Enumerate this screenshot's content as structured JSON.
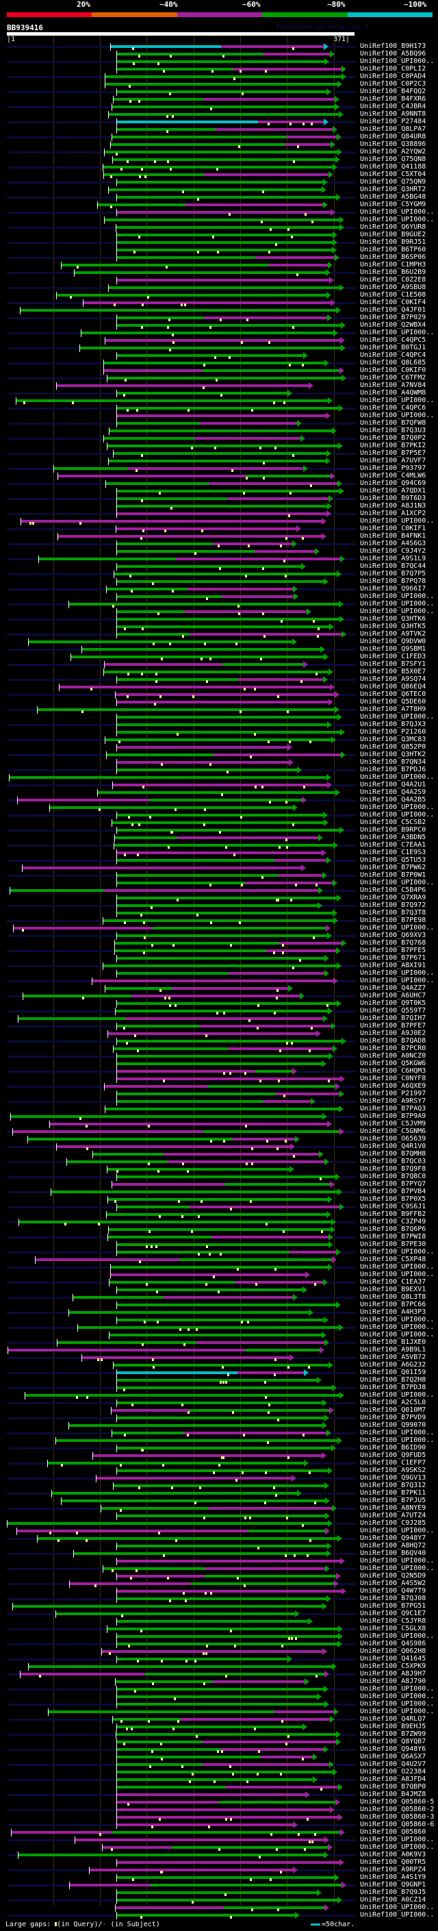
{
  "header": {
    "scale_labels": [
      "20%",
      "~40%",
      "~60%",
      "~80%",
      "~100%"
    ],
    "scale_colors": [
      "#ee0020",
      "#e06000",
      "#a020a0",
      "#00a000",
      "#00c0c8"
    ],
    "query_name": "BB939416",
    "watermark": "AlignView.pm Beta rel.7",
    "query_start": "|1",
    "query_end": "371|"
  },
  "colors": {
    "identity_100": "#00c0c8",
    "identity_80": "#00a000",
    "identity_60": "#a020a0",
    "gap_query": "#ffff90",
    "row_band": "#0a0a3a",
    "gridline": "#3a3410"
  },
  "hits": [
    {
      "label": "UniRef100_B9H173",
      "c": "cyan"
    },
    {
      "label": "UniRef100_A5BQ96",
      "c": "green"
    },
    {
      "label": "UniRef100_UPI000..",
      "c": "green"
    },
    {
      "label": "UniRef100_C0PLI2",
      "c": "green"
    },
    {
      "label": "UniRef100_C0PAD4",
      "c": "green"
    },
    {
      "label": "UniRef100_C0P2C3",
      "c": "green"
    },
    {
      "label": "UniRef100_B4FQQ2",
      "c": "green"
    },
    {
      "label": "UniRef100_B4FXR6",
      "c": "green"
    },
    {
      "label": "UniRef100_C4JBR4",
      "c": "green"
    },
    {
      "label": "UniRef100_A9NNT8",
      "c": "green"
    },
    {
      "label": "UniRef100_P27484",
      "c": "cyan"
    },
    {
      "label": "UniRef100_Q8LPA7",
      "c": "green"
    },
    {
      "label": "UniRef100_Q84UR8",
      "c": "green"
    },
    {
      "label": "UniRef100_Q38896",
      "c": "green"
    },
    {
      "label": "UniRef100_A2YQW2",
      "c": "green"
    },
    {
      "label": "UniRef100_Q75QN8",
      "c": "green"
    },
    {
      "label": "UniRef100_Q41188",
      "c": "green"
    },
    {
      "label": "UniRef100_C5XT04",
      "c": "green"
    },
    {
      "label": "UniRef100_Q75QN9",
      "c": "green"
    },
    {
      "label": "UniRef100_Q3HRT2",
      "c": "green"
    },
    {
      "label": "UniRef100_A5BG48",
      "c": "green"
    },
    {
      "label": "UniRef100_C5YGM9",
      "c": "green"
    },
    {
      "label": "UniRef100_UPI000..",
      "c": "magenta"
    },
    {
      "label": "UniRef100_UPI000..",
      "c": "green"
    },
    {
      "label": "UniRef100_Q6YUR8",
      "c": "green"
    },
    {
      "label": "UniRef100_B9GUE2",
      "c": "green"
    },
    {
      "label": "UniRef100_B9RJ51",
      "c": "green"
    },
    {
      "label": "UniRef100_B6TP60",
      "c": "green"
    },
    {
      "label": "UniRef100_B6SP06",
      "c": "green"
    },
    {
      "label": "UniRef100_C1MPH3",
      "c": "green"
    },
    {
      "label": "UniRef100_B6U2B9",
      "c": "green"
    },
    {
      "label": "UniRef100_C0Z2E8",
      "c": "magenta"
    },
    {
      "label": "UniRef100_A9SBU8",
      "c": "green"
    },
    {
      "label": "UniRef100_C1E508",
      "c": "green"
    },
    {
      "label": "UniRef100_C0KIF4",
      "c": "magenta"
    },
    {
      "label": "UniRef100_Q4JF01",
      "c": "green"
    },
    {
      "label": "UniRef100_B7P029",
      "c": "green"
    },
    {
      "label": "UniRef100_Q2WBX4",
      "c": "green"
    },
    {
      "label": "UniRef100_UPI000..",
      "c": "green"
    },
    {
      "label": "UniRef100_C4QPC5",
      "c": "magenta"
    },
    {
      "label": "UniRef100_B0TGJ1",
      "c": "green"
    },
    {
      "label": "UniRef100_C4QPC4",
      "c": "green"
    },
    {
      "label": "UniRef100_Q8L685",
      "c": "green"
    },
    {
      "label": "UniRef100_C0KIF0",
      "c": "magenta"
    },
    {
      "label": "UniRef100_C6TFM2",
      "c": "green"
    },
    {
      "label": "UniRef100_A7NV84",
      "c": "magenta"
    },
    {
      "label": "UniRef100_A4QWM8",
      "c": "green"
    },
    {
      "label": "UniRef100_UPI000..",
      "c": "green"
    },
    {
      "label": "UniRef100_C4QPC6",
      "c": "green"
    },
    {
      "label": "UniRef100_UPI000..",
      "c": "magenta"
    },
    {
      "label": "UniRef100_B7QFW8",
      "c": "green"
    },
    {
      "label": "UniRef100_B7Q3U3",
      "c": "green"
    },
    {
      "label": "UniRef100_B7Q0P2",
      "c": "green"
    },
    {
      "label": "UniRef100_B7PKI2",
      "c": "green"
    },
    {
      "label": "UniRef100_B7P5E7",
      "c": "green"
    },
    {
      "label": "UniRef100_A7UVF7",
      "c": "green"
    },
    {
      "label": "UniRef100_P93797",
      "c": "green"
    },
    {
      "label": "UniRef100_C4MLW6",
      "c": "magenta"
    },
    {
      "label": "UniRef100_Q94C69",
      "c": "green"
    },
    {
      "label": "UniRef100_A7QDX1",
      "c": "green"
    },
    {
      "label": "UniRef100_B9T6D3",
      "c": "green"
    },
    {
      "label": "UniRef100_A8J1N3",
      "c": "green"
    },
    {
      "label": "UniRef100_A1XCP2",
      "c": "magenta"
    },
    {
      "label": "UniRef100_UPI000..",
      "c": "magenta"
    },
    {
      "label": "UniRef100_C0KIF1",
      "c": "magenta"
    },
    {
      "label": "UniRef100_B4FNK1",
      "c": "magenta"
    },
    {
      "label": "UniRef100_A4S6G3",
      "c": "green"
    },
    {
      "label": "UniRef100_C9J4Y2",
      "c": "green"
    },
    {
      "label": "UniRef100_A9S1L9",
      "c": "green"
    },
    {
      "label": "UniRef100_B7QC44",
      "c": "green"
    },
    {
      "label": "UniRef100_B7Q7P5",
      "c": "green"
    },
    {
      "label": "UniRef100_B7PQ78",
      "c": "green"
    },
    {
      "label": "UniRef100_Q966I7",
      "c": "green"
    },
    {
      "label": "UniRef100_UPI000..",
      "c": "green"
    },
    {
      "label": "UniRef100_UPI000..",
      "c": "green"
    },
    {
      "label": "UniRef100_UPI000..",
      "c": "green"
    },
    {
      "label": "UniRef100_Q3HTK6",
      "c": "green"
    },
    {
      "label": "UniRef100_Q3HTK5",
      "c": "green"
    },
    {
      "label": "UniRef100_A9TVK2",
      "c": "green"
    },
    {
      "label": "UniRef100_Q9DVW0",
      "c": "green"
    },
    {
      "label": "UniRef100_Q9SBM1",
      "c": "green"
    },
    {
      "label": "UniRef100_C1FED3",
      "c": "green"
    },
    {
      "label": "UniRef100_B7SFY1",
      "c": "magenta"
    },
    {
      "label": "UniRef100_B5X0E7",
      "c": "green"
    },
    {
      "label": "UniRef100_A9SQ74",
      "c": "green"
    },
    {
      "label": "UniRef100_Q86EQ4",
      "c": "magenta"
    },
    {
      "label": "UniRef100_Q6TEC0",
      "c": "magenta"
    },
    {
      "label": "UniRef100_Q5DE60",
      "c": "magenta"
    },
    {
      "label": "UniRef100_A7T8H9",
      "c": "green"
    },
    {
      "label": "UniRef100_UPI000..",
      "c": "green"
    },
    {
      "label": "UniRef100_B7QJX3",
      "c": "green"
    },
    {
      "label": "UniRef100_P21260",
      "c": "green"
    },
    {
      "label": "UniRef100_Q3MC83",
      "c": "green"
    },
    {
      "label": "UniRef100_Q852P0",
      "c": "magenta"
    },
    {
      "label": "UniRef100_Q3HTK2",
      "c": "green"
    },
    {
      "label": "UniRef100_B7QN34",
      "c": "magenta"
    },
    {
      "label": "UniRef100_B7PDJ6",
      "c": "green"
    },
    {
      "label": "UniRef100_UPI000..",
      "c": "green"
    },
    {
      "label": "UniRef100_Q4A2U1",
      "c": "magenta"
    },
    {
      "label": "UniRef100_Q4A2S9",
      "c": "green"
    },
    {
      "label": "UniRef100_Q4A2B5",
      "c": "magenta"
    },
    {
      "label": "UniRef100_UPI000..",
      "c": "green"
    },
    {
      "label": "UniRef100_UPI000..",
      "c": "green"
    },
    {
      "label": "UniRef100_C5CSB2",
      "c": "green"
    },
    {
      "label": "UniRef100_B9RPC0",
      "c": "green"
    },
    {
      "label": "UniRef100_A3BDN5",
      "c": "green"
    },
    {
      "label": "UniRef100_C7EAA1",
      "c": "green"
    },
    {
      "label": "UniRef100_C1E9S3",
      "c": "magenta"
    },
    {
      "label": "UniRef100_Q5TU53",
      "c": "green"
    },
    {
      "label": "UniRef100_B7PW62",
      "c": "magenta"
    },
    {
      "label": "UniRef100_B7P0W1",
      "c": "green"
    },
    {
      "label": "UniRef100_UPI000..",
      "c": "green"
    },
    {
      "label": "UniRef100_C5B4P6",
      "c": "green"
    },
    {
      "label": "UniRef100_Q7XRA9",
      "c": "green"
    },
    {
      "label": "UniRef100_B7Q972",
      "c": "green"
    },
    {
      "label": "UniRef100_B7Q3T8",
      "c": "green"
    },
    {
      "label": "UniRef100_B7PE98",
      "c": "green"
    },
    {
      "label": "UniRef100_UPI000..",
      "c": "magenta"
    },
    {
      "label": "UniRef100_Q69XV3",
      "c": "green"
    },
    {
      "label": "UniRef100_B7Q768",
      "c": "green"
    },
    {
      "label": "UniRef100_B7PFE5",
      "c": "green"
    },
    {
      "label": "UniRef100_B7P671",
      "c": "green"
    },
    {
      "label": "UniRef100_A8XI91",
      "c": "green"
    },
    {
      "label": "UniRef100_UPI000..",
      "c": "green"
    },
    {
      "label": "UniRef100_UPI000..",
      "c": "magenta"
    },
    {
      "label": "UniRef100_Q4AZZ7",
      "c": "green"
    },
    {
      "label": "UniRef100_A6UHC7",
      "c": "green"
    },
    {
      "label": "UniRef100_Q9T0K5",
      "c": "green"
    },
    {
      "label": "UniRef100_Q559T7",
      "c": "green"
    },
    {
      "label": "UniRef100_B7QIH7",
      "c": "green"
    },
    {
      "label": "UniRef100_B7PFE7",
      "c": "green"
    },
    {
      "label": "UniRef100_A9J0E2",
      "c": "magenta"
    },
    {
      "label": "UniRef100_B7QAD8",
      "c": "green"
    },
    {
      "label": "UniRef100_B7PCR0",
      "c": "green"
    },
    {
      "label": "UniRef100_A0NCZ0",
      "c": "green"
    },
    {
      "label": "UniRef100_Q5KGW6",
      "c": "green"
    },
    {
      "label": "UniRef100_C6HQM3",
      "c": "magenta"
    },
    {
      "label": "UniRef100_C0NYF8",
      "c": "magenta"
    },
    {
      "label": "UniRef100_A6QXE9",
      "c": "magenta"
    },
    {
      "label": "UniRef100_P21997",
      "c": "green"
    },
    {
      "label": "UniRef100_A9RSY7",
      "c": "green"
    },
    {
      "label": "UniRef100_B7PAQ3",
      "c": "green"
    },
    {
      "label": "UniRef100_B7P9A9",
      "c": "green"
    },
    {
      "label": "UniRef100_C5JVM9",
      "c": "magenta"
    },
    {
      "label": "UniRef100_C5GNM6",
      "c": "magenta"
    },
    {
      "label": "UniRef100_O65639",
      "c": "green"
    },
    {
      "label": "UniRef100_Q4R1V0",
      "c": "magenta"
    },
    {
      "label": "UniRef100_B7QMH8",
      "c": "green"
    },
    {
      "label": "UniRef100_B7QC03",
      "c": "green"
    },
    {
      "label": "UniRef100_B7Q9F8",
      "c": "green"
    },
    {
      "label": "UniRef100_B7Q8C0",
      "c": "green"
    },
    {
      "label": "UniRef100_B7PYQ7",
      "c": "magenta"
    },
    {
      "label": "UniRef100_B7PVB4",
      "c": "green"
    },
    {
      "label": "UniRef100_B7P0X5",
      "c": "green"
    },
    {
      "label": "UniRef100_C9S6J1",
      "c": "green"
    },
    {
      "label": "UniRef100_B9FFB2",
      "c": "green"
    },
    {
      "label": "UniRef100_C3ZP49",
      "c": "green"
    },
    {
      "label": "UniRef100_B7Q6P6",
      "c": "green"
    },
    {
      "label": "UniRef100_B7PWI8",
      "c": "green"
    },
    {
      "label": "UniRef100_B7PE30",
      "c": "green"
    },
    {
      "label": "UniRef100_UPI000..",
      "c": "green"
    },
    {
      "label": "UniRef100_C5XP48",
      "c": "magenta"
    },
    {
      "label": "UniRef100_UPI000..",
      "c": "green"
    },
    {
      "label": "UniRef100_UPI000..",
      "c": "magenta"
    },
    {
      "label": "UniRef100_C1EA37",
      "c": "green"
    },
    {
      "label": "UniRef100_B9EXV1",
      "c": "green"
    },
    {
      "label": "UniRef100_Q8L3T8",
      "c": "green"
    },
    {
      "label": "UniRef100_B7PC66",
      "c": "green"
    },
    {
      "label": "UniRef100_A4H3P3",
      "c": "green"
    },
    {
      "label": "UniRef100_UPI000..",
      "c": "green"
    },
    {
      "label": "UniRef100_UPI000..",
      "c": "green"
    },
    {
      "label": "UniRef100_UPI000..",
      "c": "green"
    },
    {
      "label": "UniRef100_B1JXE0",
      "c": "green"
    },
    {
      "label": "UniRef100_A9B9L1",
      "c": "magenta"
    },
    {
      "label": "UniRef100_A5VB72",
      "c": "magenta"
    },
    {
      "label": "UniRef100_A6G232",
      "c": "green"
    },
    {
      "label": "UniRef100_Q01I59",
      "c": "cyan"
    },
    {
      "label": "UniRef100_B7Q2H8",
      "c": "green"
    },
    {
      "label": "UniRef100_B7PDJ8",
      "c": "green"
    },
    {
      "label": "UniRef100_UPI000..",
      "c": "green"
    },
    {
      "label": "UniRef100_A2C5L0",
      "c": "green"
    },
    {
      "label": "UniRef100_Q010M7",
      "c": "magenta"
    },
    {
      "label": "UniRef100_B7PVD9",
      "c": "green"
    },
    {
      "label": "UniRef100_Q99070",
      "c": "green"
    },
    {
      "label": "UniRef100_UPI000..",
      "c": "green"
    },
    {
      "label": "UniRef100_UPI000..",
      "c": "green"
    },
    {
      "label": "UniRef100_B6ID90",
      "c": "green"
    },
    {
      "label": "UniRef100_Q9FUD5",
      "c": "magenta"
    },
    {
      "label": "UniRef100_C1EFP7",
      "c": "green"
    },
    {
      "label": "UniRef100_A9SKS2",
      "c": "green"
    },
    {
      "label": "UniRef100_Q9GV13",
      "c": "magenta"
    },
    {
      "label": "UniRef100_B7Q312",
      "c": "green"
    },
    {
      "label": "UniRef100_B7PK11",
      "c": "green"
    },
    {
      "label": "UniRef100_B7PJU5",
      "c": "green"
    },
    {
      "label": "UniRef100_A8NYE9",
      "c": "green"
    },
    {
      "label": "UniRef100_A7UTZ4",
      "c": "green"
    },
    {
      "label": "UniRef100_C9J285",
      "c": "green"
    },
    {
      "label": "UniRef100_UPI000..",
      "c": "magenta"
    },
    {
      "label": "UniRef100_Q948Y7",
      "c": "green"
    },
    {
      "label": "UniRef100_A8HQ72",
      "c": "green"
    },
    {
      "label": "UniRef100_B6QV40",
      "c": "green"
    },
    {
      "label": "UniRef100_UPI000..",
      "c": "magenta"
    },
    {
      "label": "UniRef100_UPI000..",
      "c": "green"
    },
    {
      "label": "UniRef100_Q2N5D9",
      "c": "magenta"
    },
    {
      "label": "UniRef100_A4S5W2",
      "c": "magenta"
    },
    {
      "label": "UniRef100_Q4W7T9",
      "c": "magenta"
    },
    {
      "label": "UniRef100_B7QJ08",
      "c": "green"
    },
    {
      "label": "UniRef100_B7PG51",
      "c": "green"
    },
    {
      "label": "UniRef100_Q9C1E7",
      "c": "green"
    },
    {
      "label": "UniRef100_C5JYR8",
      "c": "green"
    },
    {
      "label": "UniRef100_C5GLX8",
      "c": "green"
    },
    {
      "label": "UniRef100_UPI000..",
      "c": "green"
    },
    {
      "label": "UniRef100_Q4S986",
      "c": "green"
    },
    {
      "label": "UniRef100_Q062H8",
      "c": "magenta"
    },
    {
      "label": "UniRef100_Q41645",
      "c": "green"
    },
    {
      "label": "UniRef100_C5XPK9",
      "c": "green"
    },
    {
      "label": "UniRef100_A8J9H7",
      "c": "magenta"
    },
    {
      "label": "UniRef100_A8J790",
      "c": "green"
    },
    {
      "label": "UniRef100_UPI000..",
      "c": "green"
    },
    {
      "label": "UniRef100_UPI000..",
      "c": "green"
    },
    {
      "label": "UniRef100_UPI000..",
      "c": "green"
    },
    {
      "label": "UniRef100_UPI000..",
      "c": "green"
    },
    {
      "label": "UniRef100_Q4RLQ7",
      "c": "green"
    },
    {
      "label": "UniRef100_B9EHJ5",
      "c": "green"
    },
    {
      "label": "UniRef100_B7ZW99",
      "c": "green"
    },
    {
      "label": "UniRef100_Q8YQB7",
      "c": "green"
    },
    {
      "label": "UniRef100_Q948Y6",
      "c": "green"
    },
    {
      "label": "UniRef100_Q6ASX7",
      "c": "green"
    },
    {
      "label": "UniRef100_Q4U2V7",
      "c": "green"
    },
    {
      "label": "UniRef100_O22384",
      "c": "green"
    },
    {
      "label": "UniRef100_A8JFD4",
      "c": "green"
    },
    {
      "label": "UniRef100_B7QBP0",
      "c": "green"
    },
    {
      "label": "UniRef100_B4JMZ8",
      "c": "magenta"
    },
    {
      "label": "UniRef100_Q05860-5",
      "c": "magenta"
    },
    {
      "label": "UniRef100_Q05860-2",
      "c": "magenta"
    },
    {
      "label": "UniRef100_Q05860-3",
      "c": "magenta"
    },
    {
      "label": "UniRef100_Q05860-6",
      "c": "magenta"
    },
    {
      "label": "UniRef100_Q05860",
      "c": "magenta"
    },
    {
      "label": "UniRef100_UPI000..",
      "c": "magenta"
    },
    {
      "label": "UniRef100_UPI000..",
      "c": "magenta"
    },
    {
      "label": "UniRef100_A0K9V3",
      "c": "green"
    },
    {
      "label": "UniRef100_Q00TR5",
      "c": "magenta"
    },
    {
      "label": "UniRef100_A9RPZ4",
      "c": "magenta"
    },
    {
      "label": "UniRef100_A4S1Y9",
      "c": "green"
    },
    {
      "label": "UniRef100_Q9GNP1",
      "c": "magenta"
    },
    {
      "label": "UniRef100_B7Q9J5",
      "c": "green"
    },
    {
      "label": "UniRef100_A0CZ14",
      "c": "green"
    },
    {
      "label": "UniRef100_UPI000..",
      "c": "magenta"
    },
    {
      "label": "UniRef100_UPI000..",
      "c": "green"
    }
  ],
  "footer": {
    "gaps_label": "Large gaps:",
    "in_query": "(in Query)/",
    "subject_mark": "-",
    "in_subject": " (in Subject)",
    "scale_legend": "=50char."
  }
}
